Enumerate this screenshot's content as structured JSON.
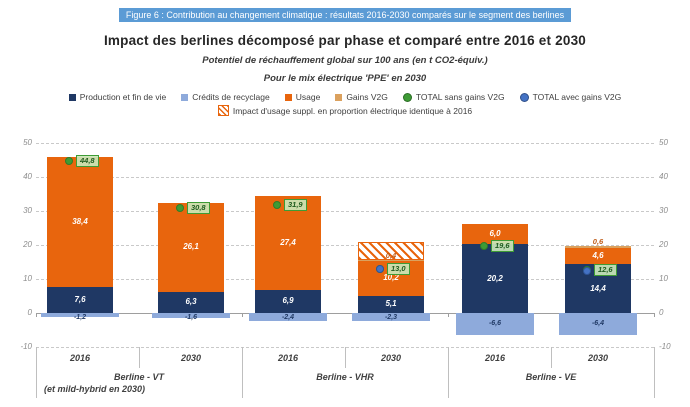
{
  "figure_caption": "Figure 6 : Contribution au changement climatique : résultats 2016-2030 comparés sur le segment des berlines",
  "title": "Impact des berlines décomposé par phase et comparé entre 2016 et 2030",
  "subtitle1": "Potentiel de réchauffement global sur 100 ans (en t CO2-équiv.)",
  "subtitle2": "Pour le mix électrique 'PPE' en 2030",
  "colors": {
    "caption_bg": "#5B9BD5",
    "production": "#1F3864",
    "credits": "#8EAADB",
    "usage": "#E8650D",
    "gains_v2g": "#DBA15E",
    "total_sans": "#3E9B35",
    "total_sans_border": "#2F7D28",
    "total_avec": "#4472C4",
    "total_avec_border": "#2F5597",
    "grid": "#C9C9C9",
    "axis": "#9e9e9e"
  },
  "legend": {
    "row1": [
      {
        "label": "Production et fin de vie",
        "swatch": "square",
        "color": "#1F3864"
      },
      {
        "label": "Crédits de recyclage",
        "swatch": "square",
        "color": "#8EAADB"
      },
      {
        "label": "Usage",
        "swatch": "square",
        "color": "#E8650D"
      },
      {
        "label": "Gains V2G",
        "swatch": "square",
        "color": "#DBA15E"
      },
      {
        "label": "TOTAL sans gains V2G",
        "swatch": "circle",
        "color": "#3E9B35"
      },
      {
        "label": "TOTAL avec gains V2G",
        "swatch": "circle",
        "color": "#4472C4"
      }
    ],
    "row2": [
      {
        "label": "Impact d'usage suppl. en proportion électrique identique à 2016",
        "swatch": "hatched",
        "color": "#E8650D"
      }
    ]
  },
  "chart_data": {
    "type": "bar",
    "stacked": true,
    "ylim": [
      -10,
      50
    ],
    "yticks": [
      50,
      40,
      30,
      20,
      10,
      0,
      -10
    ],
    "grid": "horizontal-dashed",
    "unit": "t CO2-équiv.",
    "series_names": [
      "Production et fin de vie",
      "Crédits de recyclage",
      "Usage",
      "Gains V2G",
      "TOTAL sans gains V2G",
      "TOTAL avec gains V2G"
    ],
    "groups": [
      {
        "label": "Berline - VT",
        "sublabel": "(et mild-hybrid en 2030)",
        "bars": [
          {
            "year": "2016",
            "production": 7.6,
            "usage": 38.4,
            "credits": -1.2,
            "total_sans_v2g": 44.8
          },
          {
            "year": "2030",
            "production": 6.3,
            "usage": 26.1,
            "credits": -1.6,
            "total_sans_v2g": 30.8
          }
        ]
      },
      {
        "label": "Berline - VHR",
        "sublabel": "",
        "bars": [
          {
            "year": "2016",
            "production": 6.9,
            "usage": 27.4,
            "credits": -2.4,
            "total_sans_v2g": 31.9
          },
          {
            "year": "2030",
            "production": 5.1,
            "usage": 10.2,
            "gains_v2g": 0.4,
            "credits": -2.3,
            "total_sans_v2g": 13.0,
            "total_avec_v2g": 12.6,
            "hatched_extra_usage_top": 21.0
          }
        ]
      },
      {
        "label": "Berline - VE",
        "sublabel": "",
        "bars": [
          {
            "year": "2016",
            "production": 20.2,
            "usage": 6.0,
            "credits": -6.6,
            "total_sans_v2g": 19.6
          },
          {
            "year": "2030",
            "production": 14.4,
            "usage": 4.6,
            "gains_v2g": 0.6,
            "credits": -6.4,
            "total_sans_v2g": 12.6,
            "total_avec_v2g": 12.0
          }
        ]
      }
    ]
  }
}
